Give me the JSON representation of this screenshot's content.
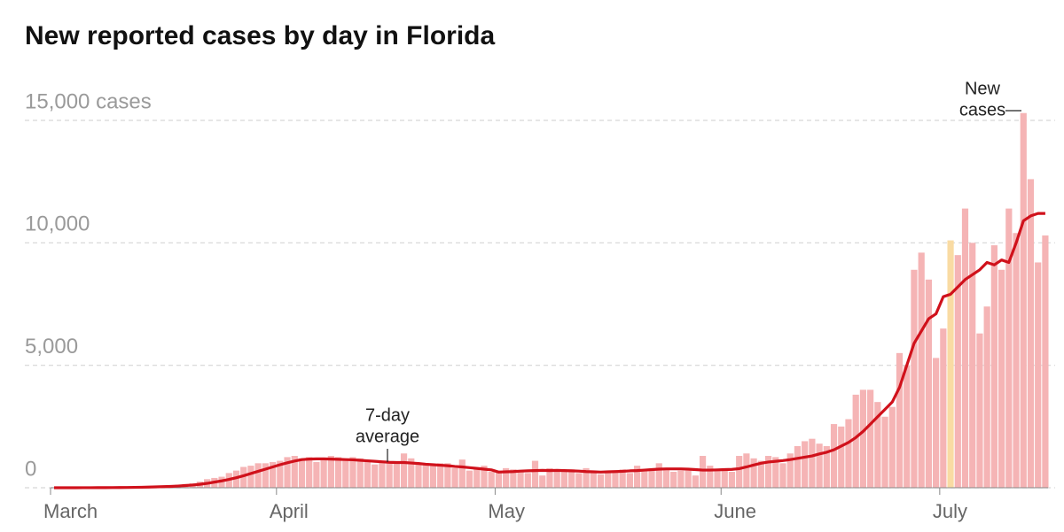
{
  "chart_data": {
    "type": "bar",
    "title": "New reported cases by day in Florida",
    "categories": [
      "March",
      null,
      null,
      null,
      null,
      null,
      null,
      null,
      null,
      null,
      null,
      null,
      null,
      null,
      null,
      null,
      null,
      null,
      null,
      null,
      null,
      null,
      null,
      null,
      null,
      null,
      null,
      null,
      null,
      null,
      null,
      "April",
      null,
      null,
      null,
      null,
      null,
      null,
      null,
      null,
      null,
      null,
      null,
      null,
      null,
      null,
      null,
      null,
      null,
      null,
      null,
      null,
      null,
      null,
      null,
      null,
      null,
      null,
      null,
      null,
      null,
      "May",
      null,
      null,
      null,
      null,
      null,
      null,
      null,
      null,
      null,
      null,
      null,
      null,
      null,
      null,
      null,
      null,
      null,
      null,
      null,
      null,
      null,
      null,
      null,
      null,
      null,
      null,
      null,
      null,
      null,
      null,
      "June",
      null,
      null,
      null,
      null,
      null,
      null,
      null,
      null,
      null,
      null,
      null,
      null,
      null,
      null,
      null,
      null,
      null,
      null,
      null,
      null,
      null,
      null,
      null,
      null,
      null,
      null,
      null,
      null,
      null,
      "July",
      null,
      null,
      null,
      null,
      null,
      null,
      null,
      null,
      null,
      null,
      null,
      null,
      null,
      null
    ],
    "series": [
      {
        "annotation": [
          "New",
          "cases"
        ],
        "color": "#f5b4b5",
        "highlight": {
          "index": 123,
          "color": "#f9dba3"
        },
        "values": [
          0,
          0,
          2,
          2,
          3,
          4,
          5,
          8,
          10,
          15,
          20,
          30,
          40,
          50,
          60,
          70,
          90,
          120,
          150,
          180,
          250,
          350,
          400,
          450,
          600,
          700,
          850,
          900,
          1000,
          1000,
          1050,
          1100,
          1250,
          1300,
          1200,
          1250,
          1050,
          1200,
          1300,
          1250,
          1100,
          1250,
          1200,
          1100,
          950,
          1100,
          1000,
          1000,
          1400,
          1200,
          1000,
          950,
          900,
          1000,
          1000,
          800,
          1150,
          700,
          800,
          900,
          650,
          700,
          800,
          750,
          650,
          600,
          1100,
          500,
          800,
          700,
          650,
          750,
          600,
          800,
          700,
          550,
          650,
          700,
          750,
          600,
          900,
          700,
          750,
          1000,
          800,
          650,
          700,
          700,
          500,
          1300,
          900,
          750,
          700,
          650,
          1300,
          1400,
          1200,
          1100,
          1300,
          1250,
          1000,
          1400,
          1700,
          1900,
          2000,
          1800,
          1700,
          2600,
          2500,
          2800,
          3800,
          4000,
          4000,
          3500,
          2900,
          3300,
          5500,
          5000,
          8900,
          9600,
          8500,
          5300,
          6500,
          10100,
          9500,
          11400,
          10000,
          6300,
          7400,
          9900,
          8900,
          11400,
          10400,
          15300,
          12600,
          9200,
          10300
        ]
      },
      {
        "annotation": [
          "7-day",
          "average"
        ],
        "color": "#d0111b",
        "values": [
          0,
          0,
          0,
          1,
          2,
          3,
          4,
          5,
          6,
          8,
          11,
          15,
          20,
          27,
          35,
          45,
          55,
          70,
          90,
          110,
          140,
          180,
          230,
          280,
          340,
          410,
          490,
          580,
          670,
          760,
          850,
          940,
          1020,
          1090,
          1150,
          1170,
          1180,
          1180,
          1170,
          1160,
          1150,
          1140,
          1120,
          1100,
          1080,
          1060,
          1040,
          1030,
          1030,
          1010,
          990,
          960,
          940,
          920,
          900,
          870,
          850,
          820,
          790,
          760,
          730,
          640,
          650,
          660,
          680,
          690,
          700,
          710,
          700,
          710,
          700,
          690,
          680,
          660,
          650,
          640,
          650,
          660,
          670,
          690,
          700,
          720,
          740,
          760,
          770,
          770,
          770,
          760,
          740,
          720,
          720,
          730,
          740,
          750,
          780,
          850,
          930,
          1000,
          1050,
          1080,
          1110,
          1150,
          1200,
          1250,
          1300,
          1380,
          1450,
          1550,
          1700,
          1850,
          2050,
          2300,
          2600,
          2900,
          3200,
          3500,
          4100,
          5000,
          5900,
          6400,
          6900,
          7100,
          7800,
          7900,
          8200,
          8500,
          8700,
          8900,
          9200,
          9100,
          9300,
          9200,
          10000,
          10900,
          11100,
          11200,
          11200
        ]
      }
    ],
    "ylim": [
      0,
      15000
    ],
    "yticks": [
      0,
      {
        "value": 5000,
        "label": "5,000"
      },
      {
        "value": 10000,
        "label": "10,000"
      },
      {
        "value": 15000,
        "label": "15,000 cases"
      }
    ],
    "grid": true
  }
}
